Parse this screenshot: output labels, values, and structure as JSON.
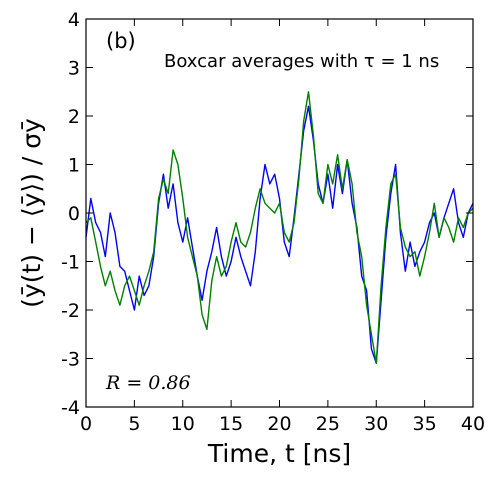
{
  "chart_data": {
    "type": "line",
    "panel_label": "(b)",
    "title": "Boxcar averages with τ = 1 ns",
    "xlabel": "Time, t [ns]",
    "ylabel": "(ȳ(t) − ⟨ȳ⟩) / σȳ",
    "annotation": "R = 0.86",
    "xlim": [
      0,
      40
    ],
    "ylim": [
      -4,
      4
    ],
    "x_ticks": [
      0,
      5,
      10,
      15,
      20,
      25,
      30,
      35,
      40
    ],
    "y_ticks": [
      -4,
      -3,
      -2,
      -1,
      0,
      1,
      2,
      3,
      4
    ],
    "grid": false,
    "x": [
      0,
      0.5,
      1,
      1.5,
      2,
      2.5,
      3,
      3.5,
      4,
      4.5,
      5,
      5.5,
      6,
      6.5,
      7,
      7.5,
      8,
      8.5,
      9,
      9.5,
      10,
      10.5,
      11,
      11.5,
      12,
      12.5,
      13,
      13.5,
      14,
      14.5,
      15,
      15.5,
      16,
      16.5,
      17,
      17.5,
      18,
      18.5,
      19,
      19.5,
      20,
      20.5,
      21,
      21.5,
      22,
      22.5,
      23,
      23.5,
      24,
      24.5,
      25,
      25.5,
      26,
      26.5,
      27,
      27.5,
      28,
      28.5,
      29,
      29.5,
      30,
      30.5,
      31,
      31.5,
      32,
      32.5,
      33,
      33.5,
      34,
      34.5,
      35,
      35.5,
      36,
      36.5,
      37,
      37.5,
      38,
      38.5,
      39,
      39.5,
      40
    ],
    "series": [
      {
        "color": "#0000ff",
        "values": [
          -0.5,
          0.3,
          -0.2,
          -0.4,
          -0.9,
          0.0,
          -0.4,
          -1.1,
          -1.2,
          -1.6,
          -2.0,
          -1.3,
          -1.7,
          -1.5,
          -0.9,
          0.2,
          0.8,
          0.1,
          0.6,
          -0.2,
          -0.6,
          -0.1,
          -0.7,
          -1.3,
          -1.8,
          -1.2,
          -0.8,
          -0.3,
          -0.9,
          -1.3,
          -1.0,
          -0.5,
          -0.9,
          -1.2,
          -1.5,
          -0.8,
          0.3,
          1.0,
          0.6,
          0.8,
          0.3,
          -0.6,
          -0.9,
          -0.1,
          0.8,
          1.7,
          2.2,
          1.5,
          0.6,
          0.2,
          0.8,
          0.1,
          1.0,
          0.4,
          1.1,
          0.2,
          -0.3,
          -1.3,
          -1.6,
          -2.8,
          -3.1,
          -1.8,
          -0.5,
          0.4,
          1.0,
          -0.4,
          -1.2,
          -0.6,
          -1.1,
          -0.8,
          -0.6,
          -0.2,
          0.0,
          -0.5,
          -0.1,
          0.2,
          0.5,
          -0.2,
          -0.5,
          0.0,
          0.2
        ]
      },
      {
        "color": "#008000",
        "values": [
          -0.2,
          -0.1,
          -0.6,
          -1.1,
          -1.5,
          -1.2,
          -1.6,
          -1.9,
          -1.5,
          -1.3,
          -1.6,
          -1.9,
          -1.5,
          -1.2,
          -0.8,
          0.3,
          0.7,
          0.4,
          1.3,
          1.0,
          0.3,
          -0.5,
          -0.9,
          -1.3,
          -2.1,
          -2.4,
          -1.4,
          -0.9,
          -1.3,
          -1.1,
          -0.6,
          -0.2,
          -0.6,
          -0.7,
          -0.4,
          0.1,
          0.5,
          0.2,
          0.1,
          0.0,
          0.2,
          -0.4,
          -0.6,
          -0.2,
          0.7,
          1.9,
          2.5,
          1.6,
          0.4,
          0.2,
          1.0,
          0.6,
          1.2,
          0.5,
          1.1,
          0.6,
          -0.4,
          -0.9,
          -1.9,
          -2.5,
          -3.1,
          -1.5,
          -0.3,
          0.6,
          0.8,
          -0.3,
          -0.7,
          -0.9,
          -0.8,
          -1.3,
          -0.9,
          -0.4,
          0.2,
          -0.5,
          -0.1,
          -0.3,
          -0.6,
          -0.1,
          -0.3,
          0.0,
          0.1
        ]
      }
    ]
  }
}
